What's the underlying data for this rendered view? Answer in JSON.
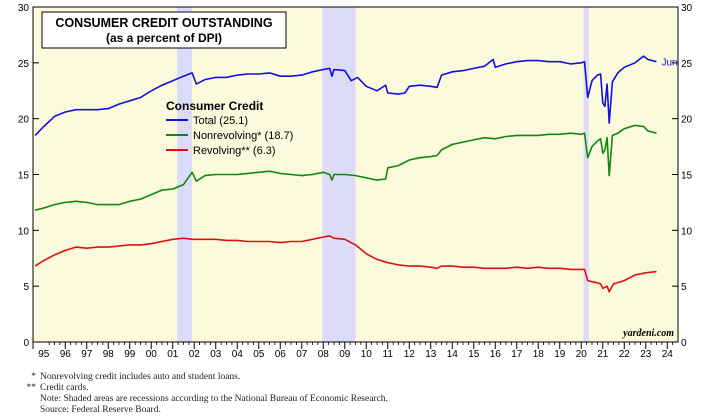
{
  "chart_data": {
    "type": "line",
    "title": "CONSUMER CREDIT OUTSTANDING",
    "subtitle": "(as a percent of DPI)",
    "ylim": [
      0,
      30
    ],
    "y_ticks": [
      0,
      5,
      10,
      15,
      20,
      25,
      30
    ],
    "xlim": [
      1994.5,
      2024.5
    ],
    "x_tick_labels": [
      "95",
      "96",
      "97",
      "98",
      "99",
      "00",
      "01",
      "02",
      "03",
      "04",
      "05",
      "06",
      "07",
      "08",
      "09",
      "10",
      "11",
      "12",
      "13",
      "14",
      "15",
      "16",
      "17",
      "18",
      "19",
      "20",
      "21",
      "22",
      "23",
      "24"
    ],
    "recessions": [
      [
        2001.2,
        2001.9
      ],
      [
        2007.95,
        2009.5
      ],
      [
        2020.1,
        2020.35
      ]
    ],
    "legend_title": "Consumer Credit",
    "end_label": "Jun",
    "watermark": "yardeni.com",
    "series": [
      {
        "name": "Total (25.1)",
        "color": "#1010e0",
        "points": [
          [
            1994.6,
            18.5
          ],
          [
            1995.0,
            19.3
          ],
          [
            1995.5,
            20.2
          ],
          [
            1996.0,
            20.6
          ],
          [
            1996.5,
            20.8
          ],
          [
            1997.0,
            20.8
          ],
          [
            1997.5,
            20.8
          ],
          [
            1998.0,
            20.9
          ],
          [
            1998.5,
            21.3
          ],
          [
            1999.0,
            21.6
          ],
          [
            1999.5,
            21.9
          ],
          [
            2000.0,
            22.5
          ],
          [
            2000.5,
            23.0
          ],
          [
            2001.0,
            23.4
          ],
          [
            2001.5,
            23.8
          ],
          [
            2001.9,
            24.1
          ],
          [
            2002.1,
            23.1
          ],
          [
            2002.5,
            23.5
          ],
          [
            2003.0,
            23.7
          ],
          [
            2003.5,
            23.7
          ],
          [
            2004.0,
            23.9
          ],
          [
            2004.5,
            24.0
          ],
          [
            2005.0,
            24.0
          ],
          [
            2005.5,
            24.1
          ],
          [
            2006.0,
            23.8
          ],
          [
            2006.5,
            23.8
          ],
          [
            2007.0,
            23.9
          ],
          [
            2007.5,
            24.2
          ],
          [
            2008.0,
            24.4
          ],
          [
            2008.3,
            24.5
          ],
          [
            2008.4,
            23.8
          ],
          [
            2008.5,
            24.4
          ],
          [
            2009.0,
            24.3
          ],
          [
            2009.3,
            23.4
          ],
          [
            2009.6,
            23.7
          ],
          [
            2010.0,
            22.9
          ],
          [
            2010.5,
            22.5
          ],
          [
            2010.9,
            23.0
          ],
          [
            2011.0,
            22.3
          ],
          [
            2011.5,
            22.2
          ],
          [
            2011.8,
            22.3
          ],
          [
            2012.0,
            22.9
          ],
          [
            2012.5,
            23.0
          ],
          [
            2013.0,
            22.9
          ],
          [
            2013.3,
            22.8
          ],
          [
            2013.5,
            23.9
          ],
          [
            2014.0,
            24.2
          ],
          [
            2014.5,
            24.3
          ],
          [
            2015.0,
            24.5
          ],
          [
            2015.5,
            24.7
          ],
          [
            2015.9,
            25.3
          ],
          [
            2016.0,
            24.6
          ],
          [
            2016.5,
            24.9
          ],
          [
            2017.0,
            25.1
          ],
          [
            2017.5,
            25.2
          ],
          [
            2018.0,
            25.2
          ],
          [
            2018.5,
            25.1
          ],
          [
            2019.0,
            25.1
          ],
          [
            2019.5,
            24.9
          ],
          [
            2020.0,
            25.0
          ],
          [
            2020.15,
            25.1
          ],
          [
            2020.3,
            21.9
          ],
          [
            2020.5,
            23.4
          ],
          [
            2020.75,
            23.9
          ],
          [
            2020.9,
            24.0
          ],
          [
            2021.0,
            21.4
          ],
          [
            2021.1,
            21.1
          ],
          [
            2021.2,
            23.1
          ],
          [
            2021.3,
            19.6
          ],
          [
            2021.45,
            23.3
          ],
          [
            2021.7,
            24.1
          ],
          [
            2022.0,
            24.6
          ],
          [
            2022.5,
            25.0
          ],
          [
            2022.9,
            25.6
          ],
          [
            2023.1,
            25.3
          ],
          [
            2023.5,
            25.1
          ]
        ]
      },
      {
        "name": "Nonrevolving* (18.7)",
        "color": "#118811",
        "points": [
          [
            1994.6,
            11.8
          ],
          [
            1995.0,
            12.0
          ],
          [
            1995.5,
            12.3
          ],
          [
            1996.0,
            12.5
          ],
          [
            1996.5,
            12.6
          ],
          [
            1997.0,
            12.5
          ],
          [
            1997.5,
            12.3
          ],
          [
            1998.0,
            12.3
          ],
          [
            1998.5,
            12.3
          ],
          [
            1999.0,
            12.6
          ],
          [
            1999.5,
            12.8
          ],
          [
            2000.0,
            13.2
          ],
          [
            2000.5,
            13.6
          ],
          [
            2001.0,
            13.7
          ],
          [
            2001.5,
            14.1
          ],
          [
            2001.9,
            15.2
          ],
          [
            2002.1,
            14.4
          ],
          [
            2002.5,
            14.9
          ],
          [
            2003.0,
            15.0
          ],
          [
            2003.5,
            15.0
          ],
          [
            2004.0,
            15.0
          ],
          [
            2004.5,
            15.1
          ],
          [
            2005.0,
            15.2
          ],
          [
            2005.5,
            15.3
          ],
          [
            2006.0,
            15.1
          ],
          [
            2006.5,
            15.0
          ],
          [
            2007.0,
            14.9
          ],
          [
            2007.5,
            15.0
          ],
          [
            2008.0,
            15.2
          ],
          [
            2008.3,
            15.0
          ],
          [
            2008.4,
            14.5
          ],
          [
            2008.5,
            15.0
          ],
          [
            2009.0,
            15.0
          ],
          [
            2009.5,
            14.9
          ],
          [
            2010.0,
            14.7
          ],
          [
            2010.5,
            14.5
          ],
          [
            2010.9,
            14.6
          ],
          [
            2011.0,
            15.6
          ],
          [
            2011.5,
            15.8
          ],
          [
            2012.0,
            16.3
          ],
          [
            2012.5,
            16.5
          ],
          [
            2013.0,
            16.6
          ],
          [
            2013.3,
            16.7
          ],
          [
            2013.5,
            17.2
          ],
          [
            2014.0,
            17.7
          ],
          [
            2014.5,
            17.9
          ],
          [
            2015.0,
            18.1
          ],
          [
            2015.5,
            18.3
          ],
          [
            2016.0,
            18.2
          ],
          [
            2016.5,
            18.4
          ],
          [
            2017.0,
            18.5
          ],
          [
            2017.5,
            18.5
          ],
          [
            2018.0,
            18.5
          ],
          [
            2018.5,
            18.6
          ],
          [
            2019.0,
            18.6
          ],
          [
            2019.5,
            18.7
          ],
          [
            2020.0,
            18.6
          ],
          [
            2020.15,
            18.7
          ],
          [
            2020.3,
            16.5
          ],
          [
            2020.5,
            17.5
          ],
          [
            2020.75,
            18.0
          ],
          [
            2020.9,
            18.2
          ],
          [
            2021.0,
            16.9
          ],
          [
            2021.1,
            17.2
          ],
          [
            2021.2,
            18.3
          ],
          [
            2021.3,
            14.9
          ],
          [
            2021.45,
            18.5
          ],
          [
            2021.7,
            18.7
          ],
          [
            2022.0,
            19.1
          ],
          [
            2022.5,
            19.4
          ],
          [
            2022.9,
            19.3
          ],
          [
            2023.1,
            18.9
          ],
          [
            2023.5,
            18.7
          ]
        ]
      },
      {
        "name": "Revolving** (6.3)",
        "color": "#e01010",
        "points": [
          [
            1994.6,
            6.8
          ],
          [
            1995.0,
            7.3
          ],
          [
            1995.5,
            7.8
          ],
          [
            1996.0,
            8.2
          ],
          [
            1996.5,
            8.5
          ],
          [
            1997.0,
            8.4
          ],
          [
            1997.5,
            8.5
          ],
          [
            1998.0,
            8.5
          ],
          [
            1998.5,
            8.6
          ],
          [
            1999.0,
            8.7
          ],
          [
            1999.5,
            8.7
          ],
          [
            2000.0,
            8.8
          ],
          [
            2000.5,
            9.0
          ],
          [
            2001.0,
            9.2
          ],
          [
            2001.5,
            9.3
          ],
          [
            2001.9,
            9.2
          ],
          [
            2002.5,
            9.2
          ],
          [
            2003.0,
            9.2
          ],
          [
            2003.5,
            9.1
          ],
          [
            2004.0,
            9.1
          ],
          [
            2004.5,
            9.0
          ],
          [
            2005.0,
            9.0
          ],
          [
            2005.5,
            9.0
          ],
          [
            2006.0,
            8.9
          ],
          [
            2006.5,
            9.0
          ],
          [
            2007.0,
            9.0
          ],
          [
            2007.5,
            9.2
          ],
          [
            2008.0,
            9.4
          ],
          [
            2008.3,
            9.5
          ],
          [
            2008.5,
            9.3
          ],
          [
            2009.0,
            9.2
          ],
          [
            2009.5,
            8.7
          ],
          [
            2010.0,
            7.9
          ],
          [
            2010.5,
            7.4
          ],
          [
            2011.0,
            7.1
          ],
          [
            2011.5,
            6.9
          ],
          [
            2012.0,
            6.8
          ],
          [
            2012.5,
            6.8
          ],
          [
            2013.0,
            6.7
          ],
          [
            2013.3,
            6.6
          ],
          [
            2013.5,
            6.8
          ],
          [
            2014.0,
            6.8
          ],
          [
            2014.5,
            6.7
          ],
          [
            2015.0,
            6.7
          ],
          [
            2015.5,
            6.6
          ],
          [
            2016.0,
            6.6
          ],
          [
            2016.5,
            6.6
          ],
          [
            2017.0,
            6.7
          ],
          [
            2017.5,
            6.6
          ],
          [
            2018.0,
            6.7
          ],
          [
            2018.5,
            6.6
          ],
          [
            2019.0,
            6.6
          ],
          [
            2019.5,
            6.5
          ],
          [
            2020.0,
            6.5
          ],
          [
            2020.15,
            6.5
          ],
          [
            2020.3,
            5.5
          ],
          [
            2020.5,
            5.4
          ],
          [
            2020.75,
            5.3
          ],
          [
            2020.9,
            5.2
          ],
          [
            2021.0,
            4.8
          ],
          [
            2021.2,
            5.0
          ],
          [
            2021.3,
            4.5
          ],
          [
            2021.5,
            5.2
          ],
          [
            2022.0,
            5.5
          ],
          [
            2022.5,
            6.0
          ],
          [
            2023.0,
            6.2
          ],
          [
            2023.5,
            6.3
          ]
        ]
      }
    ]
  },
  "footnotes": [
    {
      "mark": "*",
      "text": "Nonrevolving credit includes auto and student loans."
    },
    {
      "mark": "**",
      "text": "Credit cards."
    },
    {
      "mark": "",
      "text": "Note: Shaded areas are recessions according to the National Bureau of Economic Research."
    },
    {
      "mark": "",
      "text": "Source: Federal Reserve Board."
    }
  ],
  "colors": {
    "plot_bg": "#fcfadc",
    "recession": "#dcdcf8",
    "frame": "#000000"
  }
}
